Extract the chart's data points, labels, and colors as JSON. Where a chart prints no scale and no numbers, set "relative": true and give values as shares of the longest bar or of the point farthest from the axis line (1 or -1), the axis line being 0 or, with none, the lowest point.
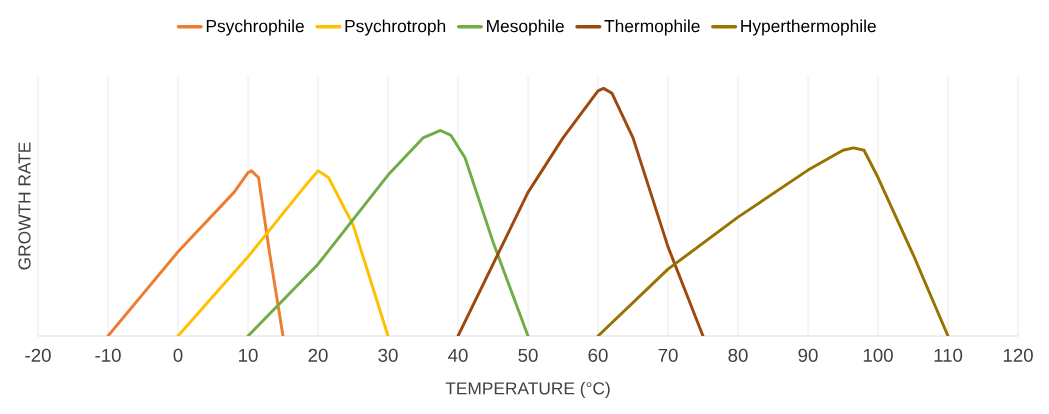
{
  "chart_data": {
    "type": "line",
    "xlabel": "TEMPERATURE (°C)",
    "ylabel": "GROWTH RATE",
    "relative": true,
    "xlim": [
      -20,
      120
    ],
    "xticks": [
      -20,
      -10,
      0,
      10,
      20,
      30,
      40,
      50,
      60,
      70,
      80,
      90,
      100,
      110,
      120
    ],
    "grid": "x",
    "legend": "top",
    "marker": "none",
    "line_style": "solid",
    "series": [
      {
        "name": "Psychrophile",
        "color": "#ed7d31",
        "x": [
          -10,
          0,
          8,
          10,
          10.5,
          11.5,
          13,
          15
        ],
        "values": [
          0,
          0.34,
          0.58,
          0.66,
          0.667,
          0.64,
          0.35,
          0
        ]
      },
      {
        "name": "Psychrotroph",
        "color": "#ffc000",
        "x": [
          0,
          10,
          18,
          20,
          21.5,
          25,
          30
        ],
        "values": [
          0,
          0.32,
          0.6,
          0.667,
          0.64,
          0.45,
          0
        ]
      },
      {
        "name": "Mesophile",
        "color": "#70ad47",
        "x": [
          10,
          20,
          30,
          35,
          37.5,
          39,
          41,
          45,
          50
        ],
        "values": [
          0,
          0.29,
          0.65,
          0.8,
          0.83,
          0.81,
          0.72,
          0.38,
          0
        ]
      },
      {
        "name": "Thermophile",
        "color": "#9e480e",
        "x": [
          40,
          50,
          55,
          60,
          60.8,
          62,
          65,
          70,
          75
        ],
        "values": [
          0,
          0.58,
          0.8,
          0.99,
          1.0,
          0.98,
          0.8,
          0.36,
          0
        ]
      },
      {
        "name": "Hyperthermophile",
        "color": "#997300",
        "x": [
          60,
          70,
          80,
          90,
          95,
          96.5,
          98,
          100,
          105,
          110
        ],
        "values": [
          0,
          0.27,
          0.48,
          0.67,
          0.75,
          0.76,
          0.75,
          0.64,
          0.33,
          0
        ]
      }
    ]
  }
}
